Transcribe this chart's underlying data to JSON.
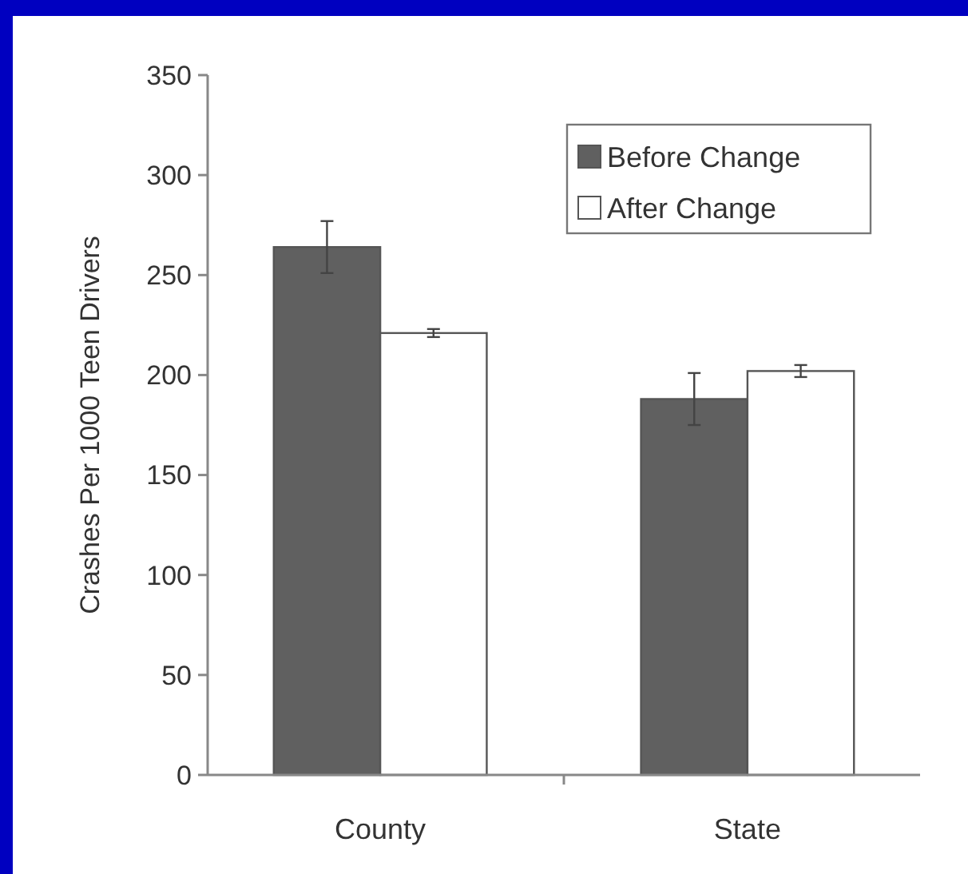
{
  "chart_data": {
    "type": "bar",
    "ylabel": "Crashes Per 1000 Teen Drivers",
    "categories": [
      "County",
      "State"
    ],
    "series": [
      {
        "name": "Before Change",
        "color": "#606060",
        "values": [
          264,
          188
        ],
        "errors": [
          13,
          13
        ]
      },
      {
        "name": "After Change",
        "color": "#ffffff",
        "values": [
          221,
          202
        ],
        "errors": [
          2,
          3
        ]
      }
    ],
    "ylim": [
      0,
      350
    ],
    "yticks": [
      0,
      50,
      100,
      150,
      200,
      250,
      300,
      350
    ],
    "legend": "top right",
    "grid": false
  }
}
